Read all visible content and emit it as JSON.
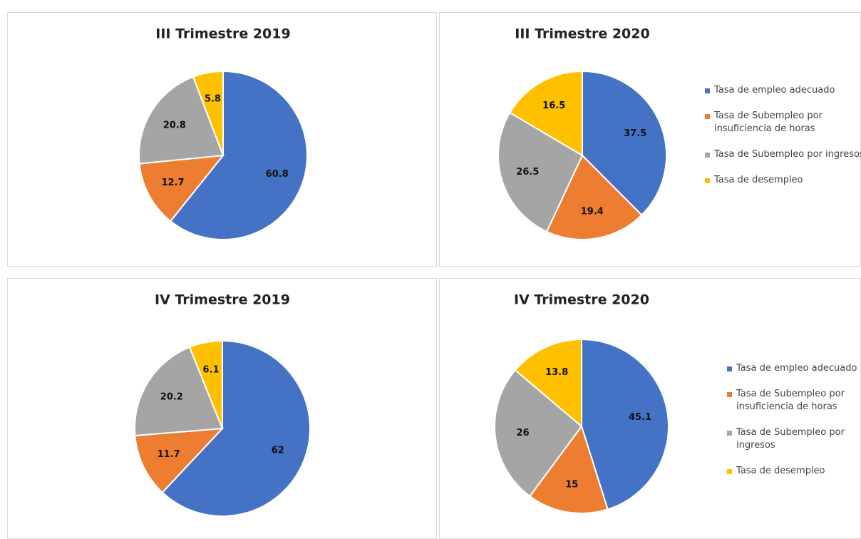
{
  "chart_data": [
    {
      "type": "pie",
      "title": "III Trimestre 2019",
      "values": [
        60.8,
        12.7,
        20.8,
        5.8
      ],
      "colors": [
        "#4472c4",
        "#ed7d31",
        "#a5a5a5",
        "#ffc000"
      ]
    },
    {
      "type": "pie",
      "title": "III Trimestre 2020",
      "categories": [
        "Tasa de empleo adecuado",
        "Tasa de Subempleo por insuficiencia de horas",
        "Tasa de Subempleo por ingresos",
        "Tasa de desempleo"
      ],
      "values": [
        37.5,
        19.4,
        26.5,
        16.5
      ],
      "colors": [
        "#4472c4",
        "#ed7d31",
        "#a5a5a5",
        "#ffc000"
      ],
      "legend": "right"
    },
    {
      "type": "pie",
      "title": "IV Trimestre 2019",
      "values": [
        62,
        11.7,
        20.2,
        6.1
      ],
      "colors": [
        "#4472c4",
        "#ed7d31",
        "#a5a5a5",
        "#ffc000"
      ]
    },
    {
      "type": "pie",
      "title": "IV Trimestre 2020",
      "categories": [
        "Tasa de empleo adecuado",
        "Tasa de Subempleo por insuficiencia de horas",
        "Tasa de Subempleo por ingresos",
        "Tasa de desempleo"
      ],
      "values": [
        45.1,
        15,
        26,
        13.8
      ],
      "colors": [
        "#4472c4",
        "#ed7d31",
        "#a5a5a5",
        "#ffc000"
      ],
      "legend": "right"
    }
  ]
}
